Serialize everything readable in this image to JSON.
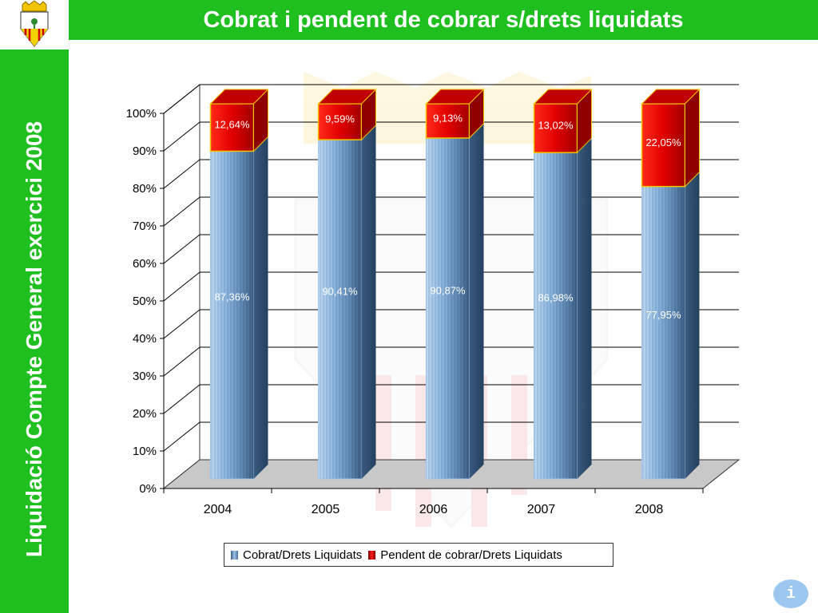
{
  "header": {
    "title": "Cobrat i pendent de cobrar s/drets liquidats"
  },
  "sidebar": {
    "title": "Liquidació Compte General exercici 2008"
  },
  "colors": {
    "brand_green": "#1fbf1f",
    "collected": "#9dc3ea",
    "pending": "#e30000"
  },
  "chart_data": {
    "type": "bar",
    "categories": [
      "2004",
      "2005",
      "2006",
      "2007",
      "2008"
    ],
    "series": [
      {
        "name": "Cobrat/Drets Liquidats",
        "values": [
          87.36,
          90.41,
          90.87,
          86.98,
          77.95
        ],
        "labels": [
          "87,36%",
          "90,41%",
          "90,87%",
          "86,98%",
          "77,95%"
        ]
      },
      {
        "name": "Pendent de cobrar/Drets Liquidats",
        "values": [
          12.64,
          9.59,
          9.13,
          13.02,
          22.05
        ],
        "labels": [
          "12,64%",
          "9,59%",
          "9,13%",
          "13,02%",
          "22,05%"
        ]
      }
    ],
    "yticks": [
      "0%",
      "10%",
      "20%",
      "30%",
      "40%",
      "50%",
      "60%",
      "70%",
      "80%",
      "90%",
      "100%"
    ],
    "ylim": [
      0,
      100
    ],
    "stacked": true,
    "grid": true,
    "legend": "bottom"
  },
  "info_button": {
    "label": "i"
  }
}
